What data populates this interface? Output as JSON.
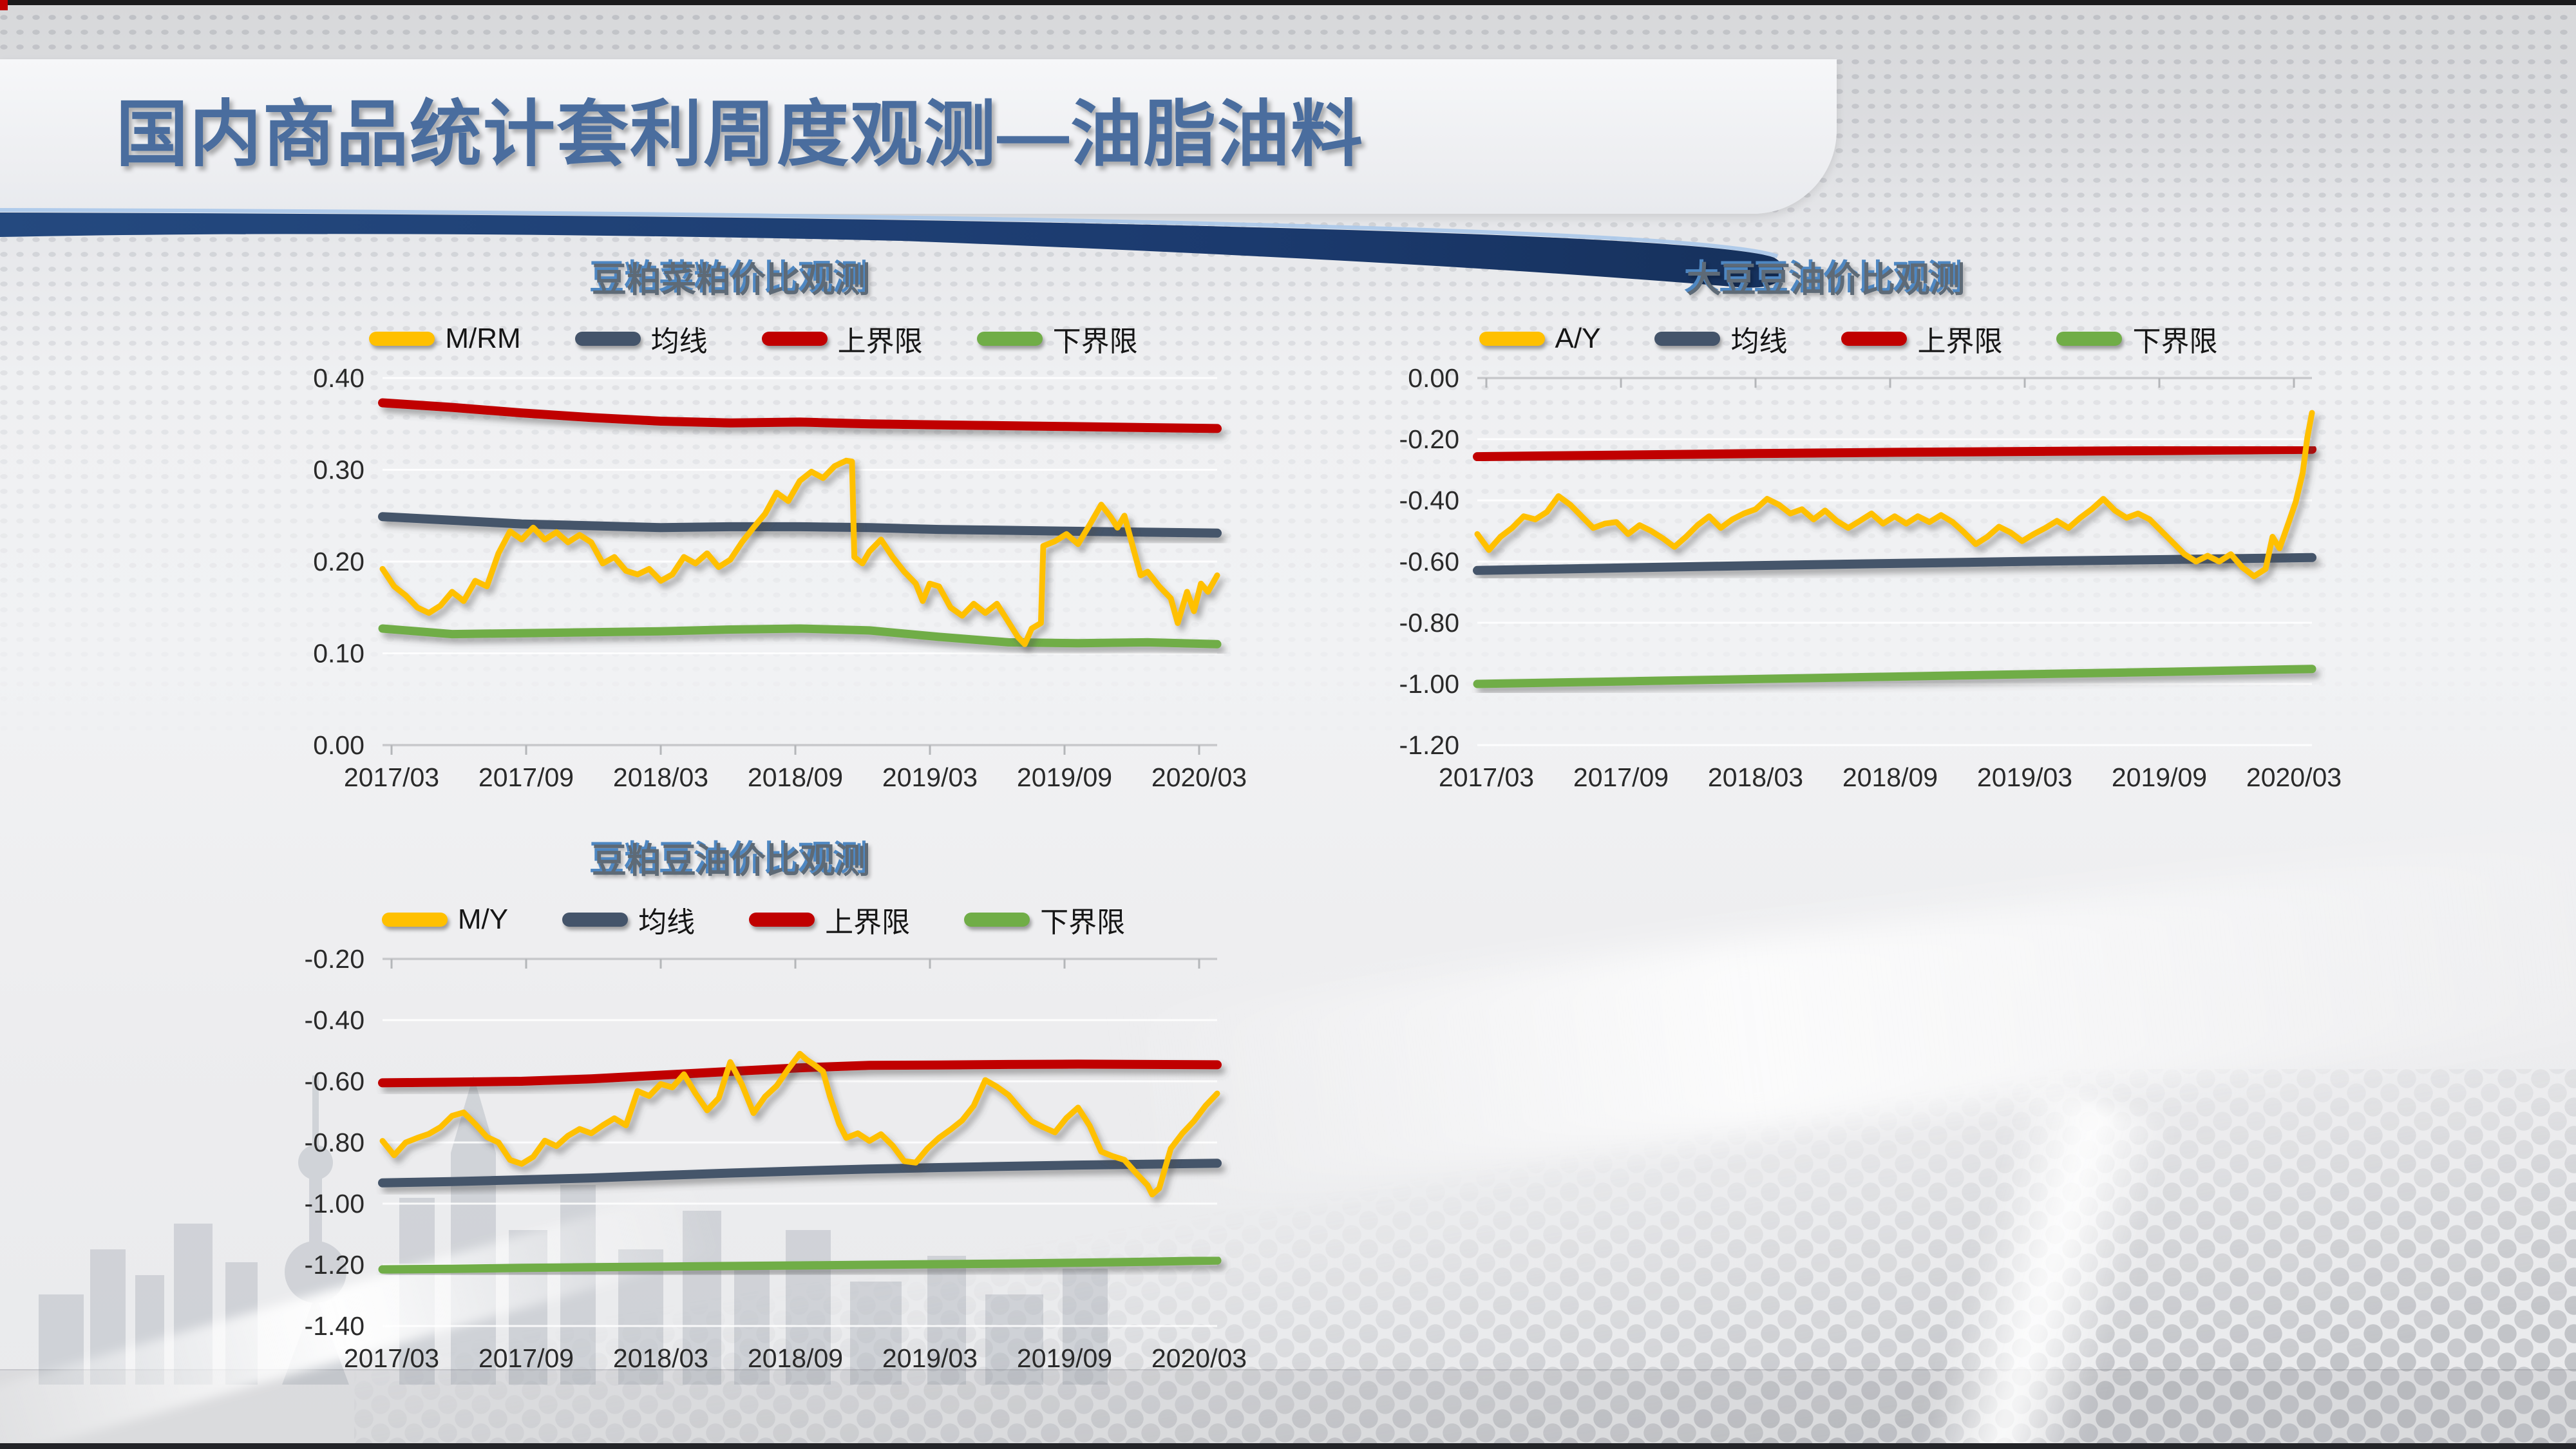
{
  "header": {
    "title": "国内商品统计套利周度观测—油脂油料"
  },
  "colors": {
    "series_main": "#FFC000",
    "series_mean": "#44546A",
    "series_upper": "#C00000",
    "series_lower": "#70AD47",
    "title_blue": "#4a6d9e",
    "bar_navy": "#1b3a6e"
  },
  "chart_data": [
    {
      "type": "line",
      "title": "豆粕菜粕价比观测",
      "x_tick_labels": [
        "2017/03",
        "2017/09",
        "2018/03",
        "2018/09",
        "2019/03",
        "2019/09",
        "2020/03"
      ],
      "x_range": [
        0,
        36
      ],
      "y_min": 0.0,
      "y_max": 0.4,
      "y_tick_values": [
        0.4,
        0.3,
        0.2,
        0.1,
        0.0
      ],
      "y_tick_labels": [
        "0.40",
        "0.30",
        "0.20",
        "0.10",
        "0.00"
      ],
      "axis_at_top": false,
      "series": [
        {
          "name": "M/RM",
          "color": "#FFC000",
          "width": 9,
          "z": 4,
          "x": [
            0,
            0.5,
            1,
            1.5,
            2,
            2.5,
            3,
            3.5,
            4,
            4.5,
            5,
            5.5,
            6,
            6.5,
            7,
            7.5,
            8,
            8.5,
            9,
            9.5,
            10,
            10.5,
            11,
            11.5,
            12,
            12.5,
            13,
            13.5,
            14,
            14.5,
            15,
            15.5,
            16,
            16.5,
            17,
            17.5,
            18,
            18.5,
            19,
            19.5,
            20,
            20.25,
            20.35,
            20.7,
            21,
            21.5,
            22,
            22.5,
            23,
            23.3,
            23.6,
            24,
            24.5,
            25,
            25.5,
            26,
            26.5,
            27,
            27.4,
            27.7,
            28,
            28.4,
            28.5,
            29,
            29.5,
            30,
            30.5,
            31,
            31.4,
            31.7,
            32,
            32.3,
            32.7,
            33,
            33.5,
            34,
            34.3,
            34.7,
            35,
            35.3,
            35.6,
            36
          ],
          "y": [
            0.192,
            0.173,
            0.163,
            0.15,
            0.144,
            0.152,
            0.167,
            0.157,
            0.179,
            0.173,
            0.209,
            0.233,
            0.224,
            0.237,
            0.224,
            0.232,
            0.221,
            0.229,
            0.221,
            0.198,
            0.205,
            0.19,
            0.186,
            0.192,
            0.179,
            0.186,
            0.205,
            0.198,
            0.209,
            0.194,
            0.202,
            0.221,
            0.237,
            0.252,
            0.275,
            0.266,
            0.288,
            0.298,
            0.291,
            0.304,
            0.31,
            0.309,
            0.205,
            0.198,
            0.211,
            0.224,
            0.205,
            0.189,
            0.176,
            0.157,
            0.176,
            0.173,
            0.15,
            0.141,
            0.154,
            0.144,
            0.154,
            0.134,
            0.118,
            0.11,
            0.127,
            0.133,
            0.217,
            0.222,
            0.23,
            0.219,
            0.24,
            0.262,
            0.249,
            0.237,
            0.25,
            0.222,
            0.185,
            0.189,
            0.173,
            0.16,
            0.133,
            0.167,
            0.146,
            0.176,
            0.167,
            0.185
          ]
        },
        {
          "name": "均线",
          "color": "#44546A",
          "width": 14,
          "z": 2,
          "x": [
            0,
            3,
            6,
            9,
            12,
            15,
            18,
            21,
            24,
            27,
            30,
            33,
            36
          ],
          "y": [
            0.249,
            0.245,
            0.241,
            0.239,
            0.237,
            0.238,
            0.238,
            0.237,
            0.235,
            0.234,
            0.233,
            0.232,
            0.231
          ]
        },
        {
          "name": "上界限",
          "color": "#C00000",
          "width": 14,
          "z": 3,
          "x": [
            0,
            3,
            6,
            9,
            12,
            15,
            18,
            21,
            24,
            27,
            30,
            33,
            36
          ],
          "y": [
            0.373,
            0.368,
            0.362,
            0.357,
            0.353,
            0.351,
            0.352,
            0.35,
            0.349,
            0.348,
            0.347,
            0.346,
            0.345
          ]
        },
        {
          "name": "下界限",
          "color": "#70AD47",
          "width": 13,
          "z": 1,
          "x": [
            0,
            3,
            6,
            9,
            12,
            15,
            18,
            21,
            24,
            27,
            30,
            33,
            36
          ],
          "y": [
            0.127,
            0.121,
            0.122,
            0.123,
            0.124,
            0.126,
            0.127,
            0.125,
            0.118,
            0.112,
            0.111,
            0.112,
            0.11
          ]
        }
      ]
    },
    {
      "type": "line",
      "title": "大豆豆油价比观测",
      "x_tick_labels": [
        "2017/03",
        "2017/09",
        "2018/03",
        "2018/09",
        "2019/03",
        "2019/09",
        "2020/03"
      ],
      "x_range": [
        0,
        36
      ],
      "y_min": -1.2,
      "y_max": 0.0,
      "y_tick_values": [
        0.0,
        -0.2,
        -0.4,
        -0.6,
        -0.8,
        -1.0,
        -1.2
      ],
      "y_tick_labels": [
        "0.00",
        "-0.20",
        "-0.40",
        "-0.60",
        "-0.80",
        "-1.00",
        "-1.20"
      ],
      "axis_at_top": true,
      "series": [
        {
          "name": "A/Y",
          "color": "#FFC000",
          "width": 9,
          "z": 4,
          "x": [
            0,
            0.5,
            1,
            1.5,
            2,
            2.5,
            3,
            3.5,
            4,
            4.5,
            5,
            5.5,
            6,
            6.5,
            7,
            7.5,
            8,
            8.5,
            9,
            9.5,
            10,
            10.5,
            11,
            11.5,
            12,
            12.5,
            13,
            13.5,
            14,
            14.5,
            15,
            15.5,
            16,
            16.5,
            17,
            17.5,
            18,
            18.5,
            19,
            19.5,
            20,
            20.5,
            21,
            21.5,
            22,
            22.5,
            23,
            23.5,
            24,
            24.5,
            25,
            25.5,
            26,
            26.5,
            27,
            27.5,
            28,
            28.5,
            29,
            29.5,
            30,
            30.5,
            31,
            31.5,
            32,
            32.5,
            33,
            33.5,
            34,
            34.3,
            34.6,
            35,
            35.3,
            35.6,
            35.8,
            36
          ],
          "y": [
            -0.51,
            -0.562,
            -0.519,
            -0.49,
            -0.452,
            -0.462,
            -0.438,
            -0.386,
            -0.414,
            -0.452,
            -0.49,
            -0.476,
            -0.471,
            -0.51,
            -0.481,
            -0.5,
            -0.524,
            -0.552,
            -0.519,
            -0.481,
            -0.452,
            -0.49,
            -0.462,
            -0.443,
            -0.429,
            -0.395,
            -0.414,
            -0.443,
            -0.429,
            -0.462,
            -0.433,
            -0.467,
            -0.49,
            -0.467,
            -0.443,
            -0.476,
            -0.452,
            -0.476,
            -0.452,
            -0.471,
            -0.448,
            -0.471,
            -0.505,
            -0.543,
            -0.519,
            -0.486,
            -0.505,
            -0.533,
            -0.51,
            -0.49,
            -0.467,
            -0.49,
            -0.457,
            -0.429,
            -0.395,
            -0.433,
            -0.457,
            -0.443,
            -0.462,
            -0.5,
            -0.538,
            -0.576,
            -0.6,
            -0.581,
            -0.6,
            -0.576,
            -0.619,
            -0.648,
            -0.624,
            -0.519,
            -0.557,
            -0.471,
            -0.405,
            -0.31,
            -0.195,
            -0.114
          ]
        },
        {
          "name": "均线",
          "color": "#44546A",
          "width": 14,
          "z": 2,
          "x": [
            0,
            6,
            12,
            18,
            24,
            30,
            36
          ],
          "y": [
            -0.629,
            -0.621,
            -0.613,
            -0.606,
            -0.599,
            -0.593,
            -0.587
          ]
        },
        {
          "name": "上界限",
          "color": "#C00000",
          "width": 14,
          "z": 3,
          "x": [
            0,
            6,
            12,
            18,
            24,
            30,
            36
          ],
          "y": [
            -0.257,
            -0.252,
            -0.247,
            -0.243,
            -0.24,
            -0.237,
            -0.233
          ]
        },
        {
          "name": "下界限",
          "color": "#70AD47",
          "width": 13,
          "z": 1,
          "x": [
            0,
            6,
            12,
            18,
            24,
            30,
            36
          ],
          "y": [
            -1.0,
            -0.992,
            -0.984,
            -0.976,
            -0.968,
            -0.96,
            -0.951
          ]
        }
      ]
    },
    {
      "type": "line",
      "title": "豆粕豆油价比观测",
      "x_tick_labels": [
        "2017/03",
        "2017/09",
        "2018/03",
        "2018/09",
        "2019/03",
        "2019/09",
        "2020/03"
      ],
      "x_range": [
        0,
        36
      ],
      "y_min": -1.4,
      "y_max": -0.2,
      "y_tick_values": [
        -0.2,
        -0.4,
        -0.6,
        -0.8,
        -1.0,
        -1.2,
        -1.4
      ],
      "y_tick_labels": [
        "-0.20",
        "-0.40",
        "-0.60",
        "-0.80",
        "-1.00",
        "-1.20",
        "-1.40"
      ],
      "axis_at_top": true,
      "series": [
        {
          "name": "M/Y",
          "color": "#FFC000",
          "width": 9,
          "z": 4,
          "x": [
            0,
            0.5,
            1,
            1.5,
            2,
            2.5,
            3,
            3.5,
            4,
            4.5,
            5,
            5.5,
            6,
            6.5,
            7,
            7.5,
            8,
            8.5,
            9,
            9.5,
            10,
            10.5,
            11,
            11.5,
            12,
            12.5,
            13,
            13.5,
            14,
            14.5,
            15,
            15.5,
            16,
            16.5,
            17,
            17.5,
            18,
            18.3,
            18.6,
            19,
            19.3,
            19.7,
            20,
            20.5,
            21,
            21.5,
            22,
            22.5,
            23,
            23.5,
            24,
            24.5,
            25,
            25.5,
            26,
            26.5,
            27,
            27.5,
            28,
            28.5,
            29,
            29.5,
            30,
            30.5,
            31,
            31.5,
            32,
            32.5,
            33,
            33.2,
            33.5,
            34,
            34.5,
            35,
            35.5,
            36
          ],
          "y": [
            -0.795,
            -0.842,
            -0.8,
            -0.785,
            -0.772,
            -0.75,
            -0.713,
            -0.702,
            -0.74,
            -0.782,
            -0.8,
            -0.857,
            -0.87,
            -0.847,
            -0.794,
            -0.812,
            -0.778,
            -0.756,
            -0.77,
            -0.744,
            -0.721,
            -0.744,
            -0.632,
            -0.648,
            -0.609,
            -0.62,
            -0.577,
            -0.64,
            -0.695,
            -0.655,
            -0.537,
            -0.61,
            -0.704,
            -0.65,
            -0.615,
            -0.56,
            -0.51,
            -0.53,
            -0.545,
            -0.568,
            -0.65,
            -0.74,
            -0.785,
            -0.77,
            -0.795,
            -0.773,
            -0.81,
            -0.861,
            -0.866,
            -0.82,
            -0.785,
            -0.758,
            -0.728,
            -0.68,
            -0.596,
            -0.618,
            -0.645,
            -0.69,
            -0.731,
            -0.75,
            -0.767,
            -0.72,
            -0.686,
            -0.745,
            -0.83,
            -0.845,
            -0.857,
            -0.9,
            -0.94,
            -0.97,
            -0.95,
            -0.82,
            -0.77,
            -0.73,
            -0.68,
            -0.64
          ]
        },
        {
          "name": "均线",
          "color": "#44546A",
          "width": 14,
          "z": 2,
          "x": [
            0,
            3,
            6,
            9,
            12,
            15,
            18,
            21,
            24,
            27,
            30,
            33,
            36
          ],
          "y": [
            -0.932,
            -0.928,
            -0.922,
            -0.916,
            -0.908,
            -0.9,
            -0.893,
            -0.887,
            -0.882,
            -0.878,
            -0.874,
            -0.871,
            -0.868
          ]
        },
        {
          "name": "上界限",
          "color": "#C00000",
          "width": 14,
          "z": 3,
          "x": [
            0,
            3,
            6,
            9,
            12,
            15,
            18,
            21,
            24,
            27,
            30,
            33,
            36
          ],
          "y": [
            -0.605,
            -0.603,
            -0.6,
            -0.592,
            -0.58,
            -0.568,
            -0.556,
            -0.548,
            -0.547,
            -0.545,
            -0.544,
            -0.545,
            -0.546
          ]
        },
        {
          "name": "下界限",
          "color": "#70AD47",
          "width": 13,
          "z": 1,
          "x": [
            0,
            3,
            6,
            9,
            12,
            15,
            18,
            21,
            24,
            27,
            30,
            33,
            36
          ],
          "y": [
            -1.215,
            -1.213,
            -1.21,
            -1.208,
            -1.206,
            -1.204,
            -1.202,
            -1.2,
            -1.198,
            -1.196,
            -1.193,
            -1.19,
            -1.186
          ]
        }
      ]
    }
  ]
}
